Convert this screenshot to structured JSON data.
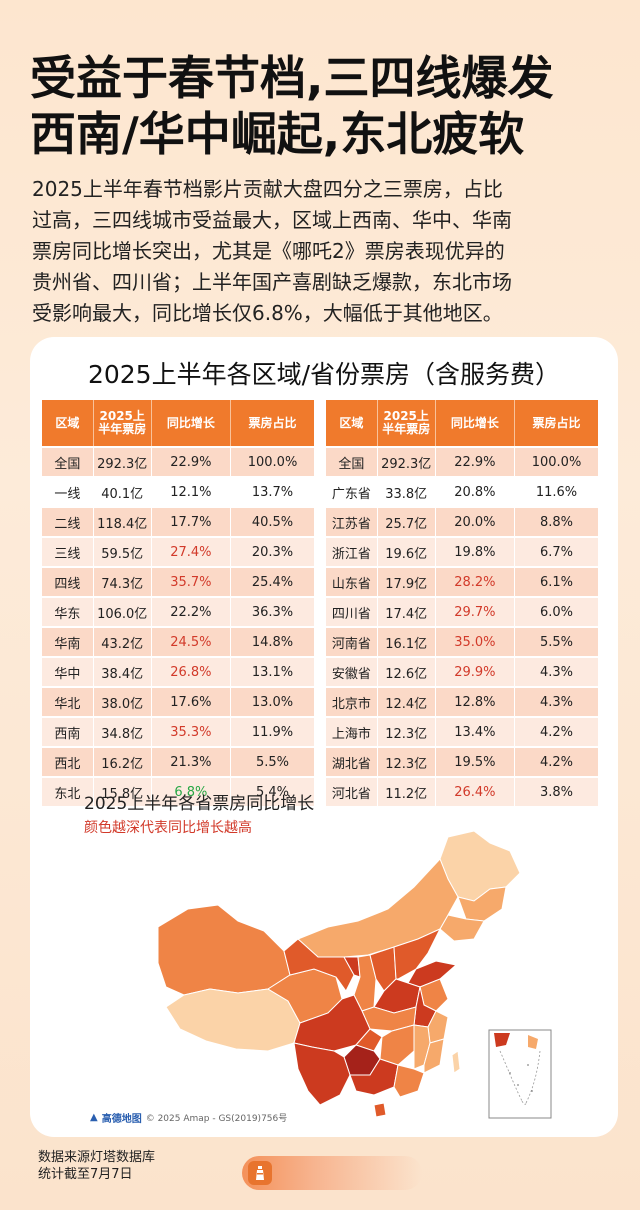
{
  "headline": {
    "line1": "受益于春节档,三四线爆发",
    "line2": "西南/华中崛起,东北疲软"
  },
  "intro": {
    "lines": [
      "2025上半年春节档影片贡献大盘四分之三票房，占比",
      "过高，三四线城市受益最大，区域上西南、华中、华南",
      "票房同比增长突出，尤其是《哪吒2》票房表现优异的",
      "贵州省、四川省；上半年国产喜剧缺乏爆款，东北市场",
      "受影响最大，同比增长仅6.8%，大幅低于其他地区。"
    ]
  },
  "card": {
    "title": "2025上半年各区域/省份票房（含服务费）"
  },
  "region_table": {
    "headers": [
      "区域",
      "2025上半年票房",
      "同比增长",
      "票房占比"
    ],
    "rows": [
      {
        "name": "全国",
        "box": "292.3亿",
        "growth": "22.9%",
        "share": "100.0%",
        "style": "dark",
        "hl": ""
      },
      {
        "name": "一线",
        "box": "40.1亿",
        "growth": "12.1%",
        "share": "13.7%",
        "style": "white",
        "hl": ""
      },
      {
        "name": "二线",
        "box": "118.4亿",
        "growth": "17.7%",
        "share": "40.5%",
        "style": "dark",
        "hl": ""
      },
      {
        "name": "三线",
        "box": "59.5亿",
        "growth": "27.4%",
        "share": "20.3%",
        "style": "light",
        "hl": "red"
      },
      {
        "name": "四线",
        "box": "74.3亿",
        "growth": "35.7%",
        "share": "25.4%",
        "style": "dark",
        "hl": "red"
      },
      {
        "name": "华东",
        "box": "106.0亿",
        "growth": "22.2%",
        "share": "36.3%",
        "style": "light",
        "hl": ""
      },
      {
        "name": "华南",
        "box": "43.2亿",
        "growth": "24.5%",
        "share": "14.8%",
        "style": "dark",
        "hl": "red"
      },
      {
        "name": "华中",
        "box": "38.4亿",
        "growth": "26.8%",
        "share": "13.1%",
        "style": "light",
        "hl": "red"
      },
      {
        "name": "华北",
        "box": "38.0亿",
        "growth": "17.6%",
        "share": "13.0%",
        "style": "dark",
        "hl": ""
      },
      {
        "name": "西南",
        "box": "34.8亿",
        "growth": "35.3%",
        "share": "11.9%",
        "style": "light",
        "hl": "red"
      },
      {
        "name": "西北",
        "box": "16.2亿",
        "growth": "21.3%",
        "share": "5.5%",
        "style": "dark",
        "hl": ""
      },
      {
        "name": "东北",
        "box": "15.8亿",
        "growth": "6.8%",
        "share": "5.4%",
        "style": "light",
        "hl": "green"
      }
    ]
  },
  "province_table": {
    "headers": [
      "区域",
      "2025上半年票房",
      "同比增长",
      "票房占比"
    ],
    "rows": [
      {
        "name": "全国",
        "box": "292.3亿",
        "growth": "22.9%",
        "share": "100.0%",
        "style": "dark",
        "hl": ""
      },
      {
        "name": "广东省",
        "box": "33.8亿",
        "growth": "20.8%",
        "share": "11.6%",
        "style": "white",
        "hl": ""
      },
      {
        "name": "江苏省",
        "box": "25.7亿",
        "growth": "20.0%",
        "share": "8.8%",
        "style": "dark",
        "hl": ""
      },
      {
        "name": "浙江省",
        "box": "19.6亿",
        "growth": "19.8%",
        "share": "6.7%",
        "style": "light",
        "hl": ""
      },
      {
        "name": "山东省",
        "box": "17.9亿",
        "growth": "28.2%",
        "share": "6.1%",
        "style": "dark",
        "hl": "red"
      },
      {
        "name": "四川省",
        "box": "17.4亿",
        "growth": "29.7%",
        "share": "6.0%",
        "style": "light",
        "hl": "red"
      },
      {
        "name": "河南省",
        "box": "16.1亿",
        "growth": "35.0%",
        "share": "5.5%",
        "style": "dark",
        "hl": "red"
      },
      {
        "name": "安徽省",
        "box": "12.6亿",
        "growth": "29.9%",
        "share": "4.3%",
        "style": "light",
        "hl": "red"
      },
      {
        "name": "北京市",
        "box": "12.4亿",
        "growth": "12.8%",
        "share": "4.3%",
        "style": "dark",
        "hl": ""
      },
      {
        "name": "上海市",
        "box": "12.3亿",
        "growth": "13.4%",
        "share": "4.2%",
        "style": "light",
        "hl": ""
      },
      {
        "name": "湖北省",
        "box": "12.3亿",
        "growth": "19.5%",
        "share": "4.2%",
        "style": "dark",
        "hl": ""
      },
      {
        "name": "河北省",
        "box": "11.2亿",
        "growth": "26.4%",
        "share": "3.8%",
        "style": "light",
        "hl": "red"
      }
    ]
  },
  "map": {
    "title": "2025上半年各省票房同比增长",
    "subtitle": "颜色越深代表同比增长越高",
    "brand": "高德地图",
    "credit": "© 2025 Amap - GS(2019)756号",
    "colors": {
      "lightest": "#fbd3a8",
      "light": "#f6a96b",
      "mid": "#ef8446",
      "dark": "#e05a2a",
      "darker": "#cc3a1f",
      "darkest": "#a5221a"
    }
  },
  "footer": {
    "source": "数据来源灯塔数据库",
    "cutoff": "统计截至7月7日"
  },
  "colors": {
    "header_orange": "#f07a2c",
    "highlight_red": "#d23a2a",
    "highlight_green": "#28a745",
    "background_peach": "#fde6cf"
  }
}
